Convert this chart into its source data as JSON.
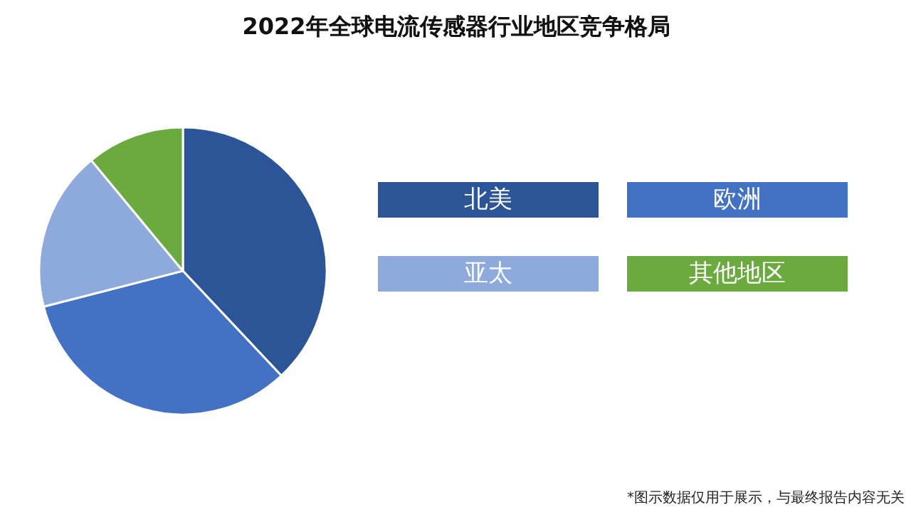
{
  "chart_data": {
    "type": "pie",
    "title": "2022年全球电流传感器行业地区竞争格局",
    "categories": [
      "北美",
      "欧洲",
      "亚太",
      "其他地区"
    ],
    "values": [
      38,
      33,
      18,
      11
    ],
    "colors": [
      "#2b5597",
      "#4372c4",
      "#8eaadc",
      "#6aaa3f"
    ],
    "legend": "right",
    "annotations": [
      "*图示数据仅用于展示，与最终报告内容无关"
    ]
  }
}
